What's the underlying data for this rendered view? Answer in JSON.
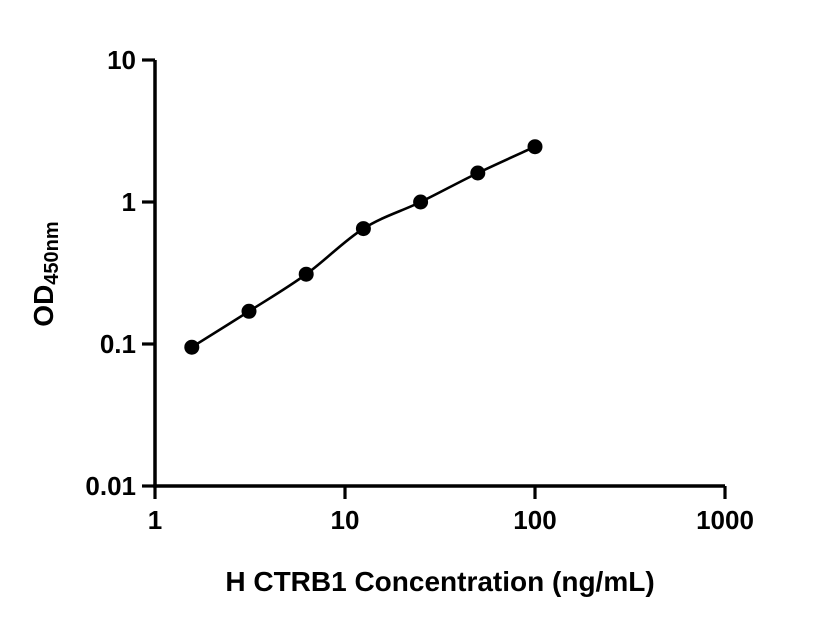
{
  "chart": {
    "colors": {
      "background": "#ffffff",
      "axis": "#000000",
      "curve": "#000000",
      "point": "#000000",
      "text": "#000000"
    }
  },
  "chart_data": {
    "type": "scatter",
    "x": [
      1.5625,
      3.125,
      6.25,
      12.5,
      25,
      50,
      100
    ],
    "y": [
      0.095,
      0.17,
      0.31,
      0.65,
      1.0,
      1.6,
      2.45
    ],
    "title": "",
    "xlabel": "H CTRB1 Concentration (ng/mL)",
    "ylabel": "OD450nm",
    "ylabel_main": "OD",
    "ylabel_sub": "450nm",
    "xscale": "log",
    "yscale": "log",
    "xlim": [
      1,
      1000
    ],
    "ylim": [
      0.01,
      10
    ],
    "x_ticks": [
      1,
      10,
      100,
      1000
    ],
    "x_tick_labels": [
      "1",
      "10",
      "100",
      "1000"
    ],
    "y_ticks": [
      0.01,
      0.1,
      1,
      10
    ],
    "y_tick_labels": [
      "0.01",
      "0.1",
      "1",
      "10"
    ],
    "grid": false,
    "legend": "none",
    "curve_style": "smooth fit through points",
    "marker": "filled-circle"
  }
}
